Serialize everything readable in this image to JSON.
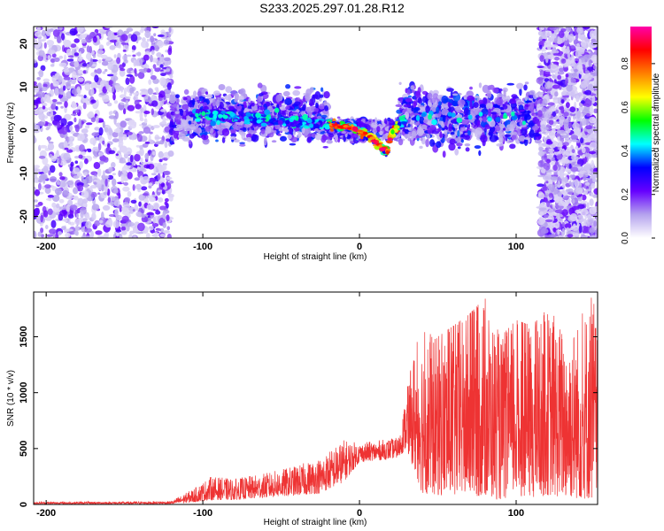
{
  "title": "S233.2025.297.01.28.R12",
  "chart_data": [
    {
      "type": "heatmap",
      "name": "spectrogram",
      "xlabel": "Height of straight line (km)",
      "ylabel": "Frequency (Hz)",
      "xlim": [
        -208,
        152
      ],
      "ylim": [
        -25,
        24
      ],
      "xticks": [
        -200,
        -100,
        0,
        100
      ],
      "yticks": [
        -20,
        -10,
        0,
        10,
        20
      ],
      "colorbar": {
        "label": "Normalized spectral amplitude",
        "range": [
          0.0,
          0.97
        ],
        "ticks": [
          0.0,
          0.2,
          0.4,
          0.6,
          0.8
        ],
        "tick_labels": [
          "0.0",
          "0.2",
          "0.4",
          "0.6",
          "0.8"
        ],
        "colors": [
          "#ffffff",
          "#b5a3ee",
          "#6600ff",
          "#0000ff",
          "#00ffff",
          "#00ff00",
          "#ffff00",
          "#ff8000",
          "#ff0000",
          "#ff00aa"
        ]
      },
      "ridge": {
        "x": [
          -105,
          -80,
          -60,
          -40,
          -25,
          -15,
          -5,
          5,
          10,
          15,
          18,
          20,
          25,
          30
        ],
        "y": [
          4,
          3,
          2.5,
          2,
          1.5,
          1,
          0.5,
          -1,
          -2.5,
          -4.5,
          -5,
          -1,
          1,
          3
        ]
      },
      "regions": [
        {
          "x": [
            -208,
            -120
          ],
          "y_center": 0,
          "y_spread": 24,
          "amp": "0.1-0.3"
        },
        {
          "x": [
            -120,
            -20
          ],
          "y_center": 3,
          "y_spread": 8,
          "amp": "0.2-0.5"
        },
        {
          "x": [
            -20,
            25
          ],
          "y_center": 0,
          "y_spread": 3,
          "amp": "0.5-0.95"
        },
        {
          "x": [
            25,
            115
          ],
          "y_center": 3,
          "y_spread": 9,
          "amp": "0.2-0.5"
        },
        {
          "x": [
            115,
            152
          ],
          "y_center": 2,
          "y_spread": 22,
          "amp": "0.1-0.3"
        }
      ]
    },
    {
      "type": "line",
      "name": "snr",
      "xlabel": "Height of straight line (km)",
      "ylabel": "SNR (10 * v/v)",
      "xlim": [
        -208,
        152
      ],
      "ylim": [
        0,
        1900
      ],
      "xticks": [
        -200,
        -100,
        0,
        100
      ],
      "yticks": [
        0,
        500,
        1000,
        1500
      ],
      "color": "#ee3333",
      "envelope": {
        "x": [
          -208,
          -150,
          -120,
          -105,
          -95,
          -80,
          -60,
          -40,
          -25,
          -10,
          0,
          15,
          25,
          30,
          35,
          40,
          50,
          60,
          70,
          80,
          90,
          100,
          110,
          120,
          130,
          140,
          150,
          152
        ],
        "low": [
          5,
          5,
          5,
          20,
          40,
          40,
          60,
          80,
          100,
          200,
          380,
          400,
          420,
          500,
          300,
          100,
          80,
          60,
          80,
          60,
          40,
          80,
          60,
          80,
          60,
          50,
          40,
          40
        ],
        "high": [
          25,
          25,
          30,
          150,
          250,
          230,
          280,
          350,
          420,
          580,
          550,
          580,
          600,
          1000,
          1400,
          1550,
          1500,
          1600,
          1700,
          1850,
          1500,
          1650,
          1600,
          1750,
          1600,
          1650,
          1900,
          1400
        ]
      }
    }
  ]
}
